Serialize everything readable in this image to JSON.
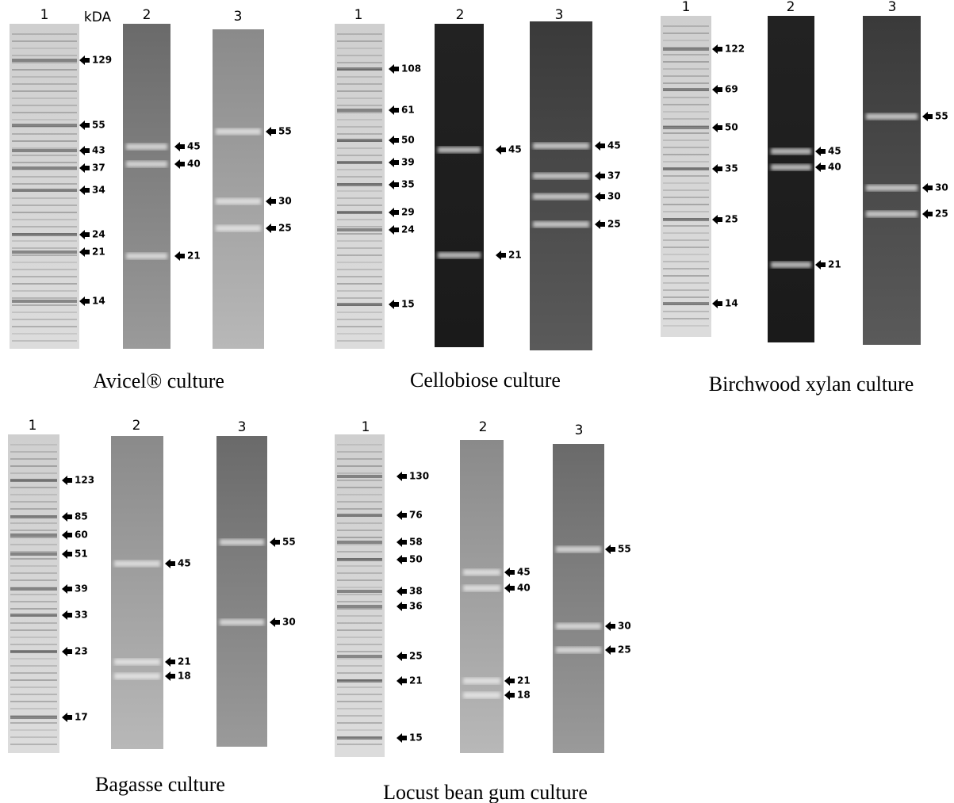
{
  "panels": [
    {
      "caption": "Avicel® culture",
      "unit": "kDA",
      "lanes": [
        {
          "number": "1",
          "markers": [
            "129",
            "55",
            "43",
            "37",
            "34",
            "24",
            "21",
            "14"
          ]
        },
        {
          "number": "2",
          "markers": [
            "45",
            "40",
            "21"
          ]
        },
        {
          "number": "3",
          "markers": [
            "55",
            "30",
            "25"
          ]
        }
      ]
    },
    {
      "caption": "Cellobiose culture",
      "lanes": [
        {
          "number": "1",
          "markers": [
            "108",
            "61",
            "50",
            "39",
            "35",
            "29",
            "24",
            "15"
          ]
        },
        {
          "number": "2",
          "markers": [
            "45",
            "21"
          ]
        },
        {
          "number": "3",
          "markers": [
            "45",
            "37",
            "30",
            "25"
          ]
        }
      ]
    },
    {
      "caption": "Birchwood xylan culture",
      "lanes": [
        {
          "number": "1",
          "markers": [
            "122",
            "69",
            "50",
            "35",
            "25",
            "14"
          ]
        },
        {
          "number": "2",
          "markers": [
            "45",
            "40",
            "21"
          ]
        },
        {
          "number": "3",
          "markers": [
            "55",
            "30",
            "25"
          ]
        }
      ]
    },
    {
      "caption": "Bagasse culture",
      "lanes": [
        {
          "number": "1",
          "markers": [
            "123",
            "85",
            "60",
            "51",
            "39",
            "33",
            "23",
            "17"
          ]
        },
        {
          "number": "2",
          "markers": [
            "45",
            "21",
            "18"
          ]
        },
        {
          "number": "3",
          "markers": [
            "55",
            "30"
          ]
        }
      ]
    },
    {
      "caption": "Locust bean gum culture",
      "lanes": [
        {
          "number": "1",
          "markers": [
            "130",
            "76",
            "58",
            "50",
            "38",
            "36",
            "25",
            "21",
            "15"
          ]
        },
        {
          "number": "2",
          "markers": [
            "45",
            "40",
            "21",
            "18"
          ]
        },
        {
          "number": "3",
          "markers": [
            "55",
            "30",
            "25"
          ]
        }
      ]
    }
  ]
}
